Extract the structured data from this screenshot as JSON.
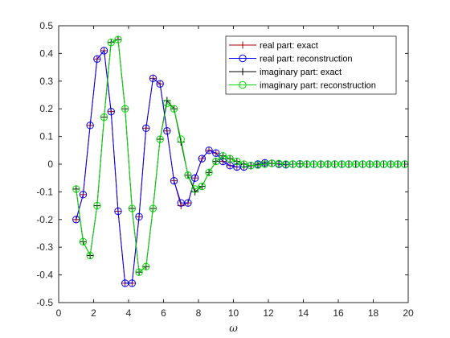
{
  "chart_data": {
    "type": "line",
    "title": "",
    "xlabel": "ω",
    "ylabel": "",
    "xlim": [
      0,
      20
    ],
    "ylim": [
      -0.5,
      0.5
    ],
    "xticks": [
      0,
      2,
      4,
      6,
      8,
      10,
      12,
      14,
      16,
      18,
      20
    ],
    "yticks": [
      -0.5,
      -0.4,
      -0.3,
      -0.2,
      -0.1,
      0,
      0.1,
      0.2,
      0.3,
      0.4,
      0.5
    ],
    "grid": false,
    "legend_position": "top-right",
    "x": [
      1.0,
      1.4,
      1.8,
      2.2,
      2.6,
      3.0,
      3.4,
      3.8,
      4.2,
      4.6,
      5.0,
      5.4,
      5.8,
      6.2,
      6.6,
      7.0,
      7.4,
      7.8,
      8.2,
      8.6,
      9.0,
      9.4,
      9.8,
      10.2,
      10.6,
      11.0,
      11.4,
      11.8,
      12.2,
      12.6,
      13.0,
      13.4,
      13.8,
      14.2,
      14.6,
      15.0,
      15.4,
      15.8,
      16.2,
      16.6,
      17.0,
      17.4,
      17.8,
      18.2,
      18.6,
      19.0,
      19.4,
      19.8
    ],
    "series": [
      {
        "name": "real part: exact",
        "color": "#aa0000",
        "marker": "plus",
        "values": [
          -0.2,
          -0.11,
          0.14,
          0.38,
          0.41,
          0.19,
          -0.17,
          -0.43,
          -0.43,
          -0.19,
          0.13,
          0.31,
          0.29,
          0.12,
          -0.06,
          -0.15,
          -0.14,
          -0.05,
          0.02,
          0.05,
          0.04,
          0.01,
          -0.005,
          -0.01,
          -0.01,
          -0.005,
          0.0,
          0.005,
          0.003,
          0.0,
          -0.002,
          0.0,
          0.001,
          0.0,
          0.0,
          0.0,
          0.0,
          0.0,
          0.0,
          0.0,
          0.0,
          0.0,
          0.0,
          0.0,
          0.0,
          0.0,
          0.0,
          0.0
        ]
      },
      {
        "name": "real part: reconstruction",
        "color": "#0000ff",
        "marker": "circle",
        "values": [
          -0.2,
          -0.11,
          0.14,
          0.38,
          0.41,
          0.19,
          -0.17,
          -0.43,
          -0.43,
          -0.19,
          0.13,
          0.31,
          0.29,
          0.12,
          -0.06,
          -0.14,
          -0.14,
          -0.05,
          0.02,
          0.05,
          0.04,
          0.01,
          -0.005,
          -0.01,
          -0.01,
          -0.005,
          0.0,
          0.005,
          0.003,
          0.0,
          -0.002,
          0.0,
          0.001,
          0.0,
          0.0,
          0.0,
          0.0,
          0.0,
          0.0,
          0.0,
          0.0,
          0.0,
          0.0,
          0.0,
          0.0,
          0.0,
          0.0,
          0.0
        ]
      },
      {
        "name": "imaginary part: exact",
        "color": "#000000",
        "marker": "plus",
        "values": [
          -0.09,
          -0.28,
          -0.33,
          -0.15,
          0.17,
          0.44,
          0.45,
          0.2,
          -0.16,
          -0.39,
          -0.37,
          -0.16,
          0.09,
          0.23,
          0.2,
          0.08,
          -0.04,
          -0.1,
          -0.08,
          -0.03,
          0.01,
          0.03,
          0.02,
          0.01,
          0.0,
          -0.005,
          -0.003,
          0.0,
          0.003,
          0.002,
          0.0,
          0.0,
          0.0,
          0.0,
          0.0,
          0.0,
          0.0,
          0.0,
          0.0,
          0.0,
          0.0,
          0.0,
          0.0,
          0.0,
          0.0,
          0.0,
          0.0,
          0.0
        ]
      },
      {
        "name": "imaginary part: reconstruction",
        "color": "#00dd00",
        "marker": "circle",
        "values": [
          -0.09,
          -0.28,
          -0.33,
          -0.15,
          0.17,
          0.44,
          0.45,
          0.2,
          -0.16,
          -0.39,
          -0.37,
          -0.16,
          0.09,
          0.22,
          0.2,
          0.09,
          -0.04,
          -0.09,
          -0.08,
          -0.03,
          0.01,
          0.03,
          0.02,
          0.01,
          0.0,
          -0.005,
          -0.003,
          0.0,
          0.003,
          0.002,
          0.0,
          0.0,
          0.0,
          0.0,
          0.0,
          0.0,
          0.0,
          0.0,
          0.0,
          0.0,
          0.0,
          0.0,
          0.0,
          0.0,
          0.0,
          0.0,
          0.0,
          0.0
        ]
      }
    ]
  }
}
